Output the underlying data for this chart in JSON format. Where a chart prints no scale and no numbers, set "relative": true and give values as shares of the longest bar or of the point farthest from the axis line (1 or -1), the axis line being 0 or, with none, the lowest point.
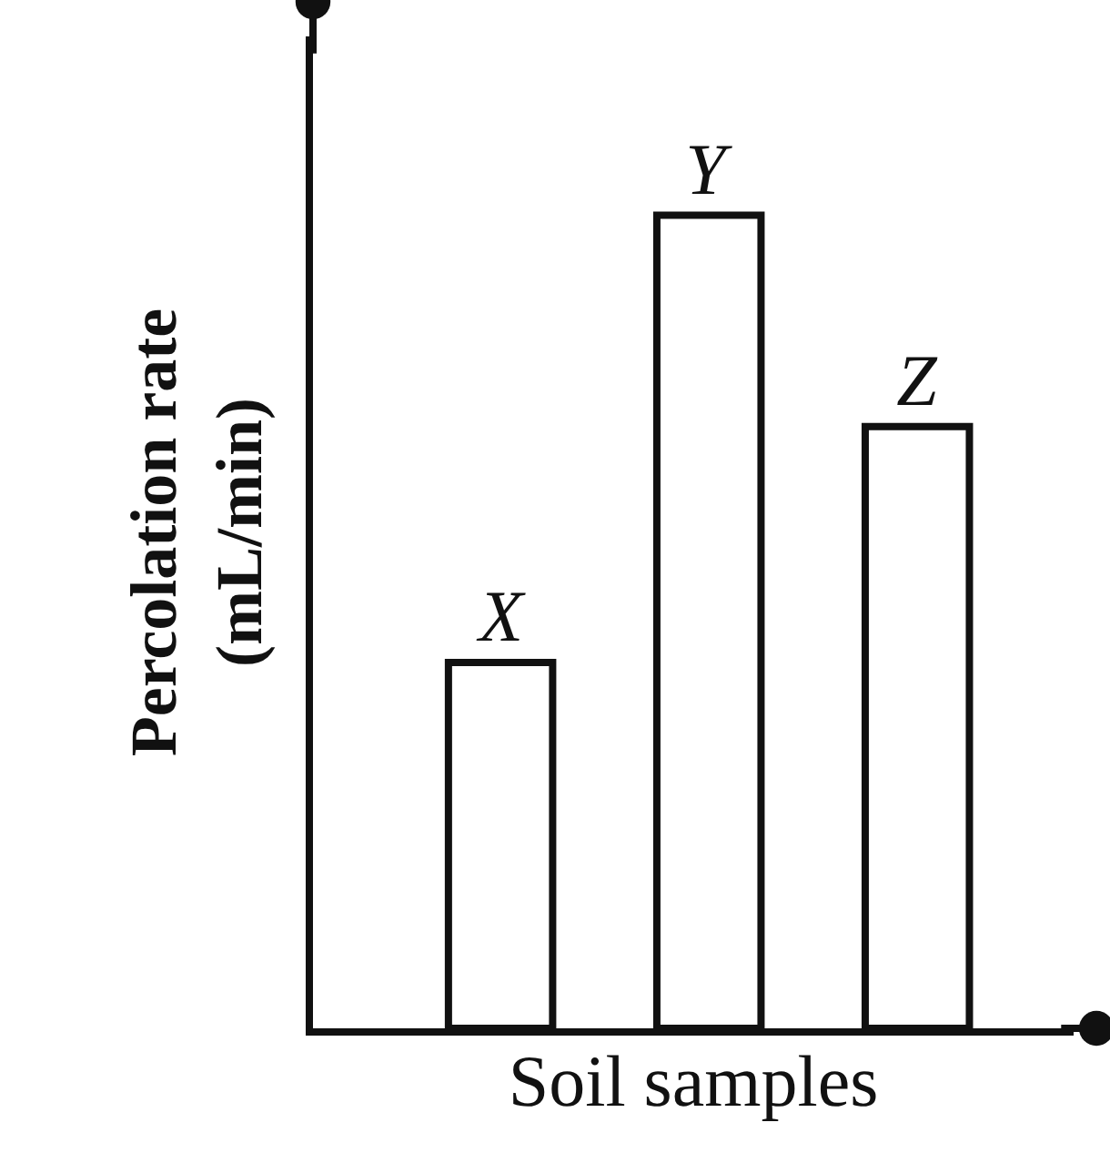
{
  "chart_data": {
    "type": "bar",
    "xlabel": "Soil samples",
    "ylabel": "Percolation rate\n(mL/min)",
    "relative": true,
    "categories": [
      "X",
      "Y",
      "Z"
    ],
    "values": [
      0.45,
      1,
      0.74
    ],
    "color": "#ffffff",
    "grid": false,
    "legend": false
  }
}
